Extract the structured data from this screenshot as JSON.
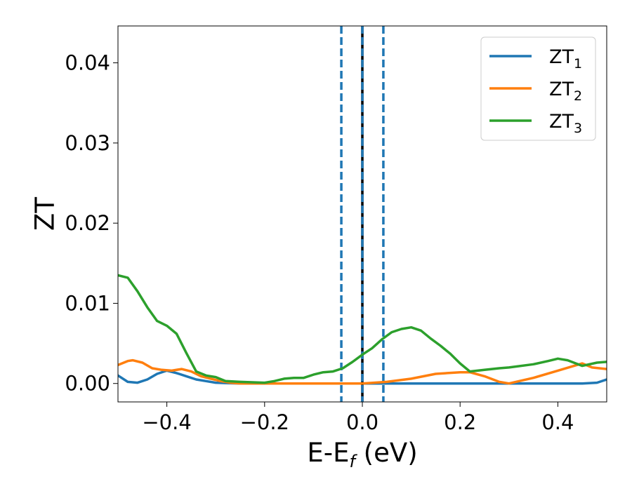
{
  "chart_data": {
    "type": "line",
    "title": "",
    "xlabel": {
      "main": "E-E",
      "sub": "f",
      "tail": " (eV)"
    },
    "ylabel": "ZT",
    "xlim": [
      -0.5,
      0.5
    ],
    "ylim": [
      -0.0023,
      0.0446
    ],
    "x_ticks": [
      -0.4,
      -0.2,
      0.0,
      0.2,
      0.4
    ],
    "x_tick_labels": [
      "−0.4",
      "−0.2",
      "0.0",
      "0.2",
      "0.4"
    ],
    "y_ticks": [
      0.0,
      0.01,
      0.02,
      0.03,
      0.04
    ],
    "y_tick_labels": [
      "0.00",
      "0.01",
      "0.02",
      "0.03",
      "0.04"
    ],
    "grid": false,
    "legend_position": "top-right",
    "vertical_lines": [
      {
        "x": -0.043,
        "style": "dashed",
        "color": "#1f77b4"
      },
      {
        "x": 0.0,
        "style": "solid",
        "color": "#000000"
      },
      {
        "x": 0.0,
        "style": "dashed",
        "color": "#1f77b4"
      },
      {
        "x": 0.043,
        "style": "dashed",
        "color": "#1f77b4"
      }
    ],
    "series": [
      {
        "name": "ZT",
        "name_sub": "1",
        "color": "#1f77b4",
        "x": [
          -0.5,
          -0.48,
          -0.46,
          -0.44,
          -0.42,
          -0.4,
          -0.38,
          -0.36,
          -0.34,
          -0.32,
          -0.3,
          -0.28,
          -0.26,
          -0.24,
          -0.2,
          -0.1,
          0.0,
          0.1,
          0.2,
          0.3,
          0.4,
          0.45,
          0.48,
          0.5
        ],
        "values": [
          0.001,
          0.0002,
          0.0001,
          0.0005,
          0.0012,
          0.0016,
          0.0013,
          0.0009,
          0.0005,
          0.0003,
          0.0001,
          5e-05,
          2e-05,
          0.0,
          0.0,
          0.0,
          0.0,
          0.0,
          0.0,
          0.0,
          0.0,
          0.0,
          0.0001,
          0.0005
        ]
      },
      {
        "name": "ZT",
        "name_sub": "2",
        "color": "#ff7f0e",
        "x": [
          -0.5,
          -0.48,
          -0.47,
          -0.45,
          -0.43,
          -0.41,
          -0.39,
          -0.37,
          -0.35,
          -0.33,
          -0.31,
          -0.29,
          -0.27,
          -0.25,
          -0.2,
          -0.1,
          0.0,
          0.05,
          0.1,
          0.15,
          0.2,
          0.22,
          0.25,
          0.28,
          0.3,
          0.35,
          0.4,
          0.45,
          0.47,
          0.5
        ],
        "values": [
          0.0023,
          0.0028,
          0.0029,
          0.0026,
          0.0019,
          0.0017,
          0.0016,
          0.0018,
          0.0015,
          0.0009,
          0.0006,
          0.0003,
          0.0001,
          0.0,
          0.0,
          0.0,
          0.0,
          0.0002,
          0.0006,
          0.0012,
          0.0014,
          0.0014,
          0.0009,
          0.0002,
          0.0,
          0.0007,
          0.0016,
          0.0025,
          0.002,
          0.0018
        ]
      },
      {
        "name": "ZT",
        "name_sub": "3",
        "color": "#2ca02c",
        "x": [
          -0.5,
          -0.48,
          -0.46,
          -0.44,
          -0.42,
          -0.4,
          -0.38,
          -0.36,
          -0.34,
          -0.32,
          -0.3,
          -0.28,
          -0.25,
          -0.2,
          -0.18,
          -0.16,
          -0.14,
          -0.12,
          -0.1,
          -0.08,
          -0.06,
          -0.04,
          -0.02,
          0.0,
          0.02,
          0.04,
          0.06,
          0.08,
          0.1,
          0.12,
          0.14,
          0.16,
          0.18,
          0.2,
          0.22,
          0.25,
          0.28,
          0.3,
          0.35,
          0.38,
          0.4,
          0.42,
          0.45,
          0.48,
          0.5
        ],
        "values": [
          0.0135,
          0.0132,
          0.0115,
          0.0095,
          0.0078,
          0.0072,
          0.0062,
          0.0038,
          0.0015,
          0.001,
          0.0008,
          0.0003,
          0.0002,
          0.0001,
          0.0003,
          0.0006,
          0.0007,
          0.0007,
          0.0011,
          0.0014,
          0.0015,
          0.0019,
          0.0027,
          0.0036,
          0.0044,
          0.0055,
          0.0064,
          0.0068,
          0.007,
          0.0066,
          0.0056,
          0.0047,
          0.0037,
          0.0025,
          0.0015,
          0.0017,
          0.0019,
          0.002,
          0.0024,
          0.0028,
          0.0031,
          0.0029,
          0.0022,
          0.0026,
          0.0027
        ]
      }
    ]
  }
}
